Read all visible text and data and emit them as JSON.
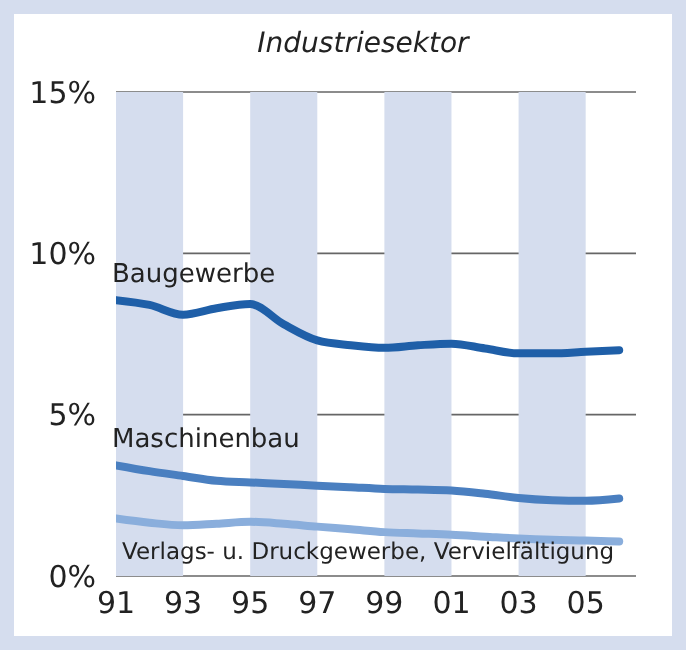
{
  "chart_data": {
    "type": "line",
    "title": "Industriesektor",
    "x": [
      1991,
      1992,
      1993,
      1994,
      1995,
      1996,
      1997,
      1998,
      1999,
      2000,
      2001,
      2002,
      2003,
      2004,
      2005,
      2006
    ],
    "series": [
      {
        "name": "Baugewerbe",
        "color": "#1f5fa8",
        "values": [
          8.55,
          8.4,
          8.1,
          8.3,
          8.43,
          7.8,
          7.3,
          7.15,
          7.07,
          7.15,
          7.2,
          7.05,
          6.9,
          6.9,
          6.95,
          7.0
        ]
      },
      {
        "name": "Maschinenbau",
        "color": "#4a7fc0",
        "values": [
          3.43,
          3.25,
          3.1,
          2.95,
          2.9,
          2.85,
          2.8,
          2.75,
          2.7,
          2.68,
          2.65,
          2.55,
          2.42,
          2.35,
          2.33,
          2.4
        ]
      },
      {
        "name": "Verlags- u. Druckgewerbe, Vervielfältigung",
        "color": "#8aaedc",
        "values": [
          1.78,
          1.65,
          1.57,
          1.62,
          1.68,
          1.62,
          1.53,
          1.45,
          1.36,
          1.32,
          1.28,
          1.22,
          1.16,
          1.12,
          1.1,
          1.07
        ]
      }
    ],
    "xlim": [
      1991,
      2006.5
    ],
    "xticks": [
      {
        "value": 1991,
        "label": "91"
      },
      {
        "value": 1993,
        "label": "93"
      },
      {
        "value": 1995,
        "label": "95"
      },
      {
        "value": 1997,
        "label": "97"
      },
      {
        "value": 1999,
        "label": "99"
      },
      {
        "value": 2001,
        "label": "01"
      },
      {
        "value": 2003,
        "label": "03"
      },
      {
        "value": 2005,
        "label": "05"
      }
    ],
    "ylim": [
      0,
      15
    ],
    "yticks": [
      {
        "value": 0,
        "label": "0%"
      },
      {
        "value": 5,
        "label": "5%"
      },
      {
        "value": 10,
        "label": "10%"
      },
      {
        "value": 15,
        "label": "15%"
      }
    ],
    "bands": [
      {
        "axis": "x",
        "from": 1991,
        "to": 1993,
        "color": "#d5ddee"
      },
      {
        "axis": "x",
        "from": 1995,
        "to": 1997,
        "color": "#d5ddee"
      },
      {
        "axis": "x",
        "from": 1999,
        "to": 2001,
        "color": "#d5ddee"
      },
      {
        "axis": "x",
        "from": 2003,
        "to": 2005,
        "color": "#d5ddee"
      }
    ],
    "grid": "y",
    "marker": "none",
    "line_style": "solid"
  }
}
